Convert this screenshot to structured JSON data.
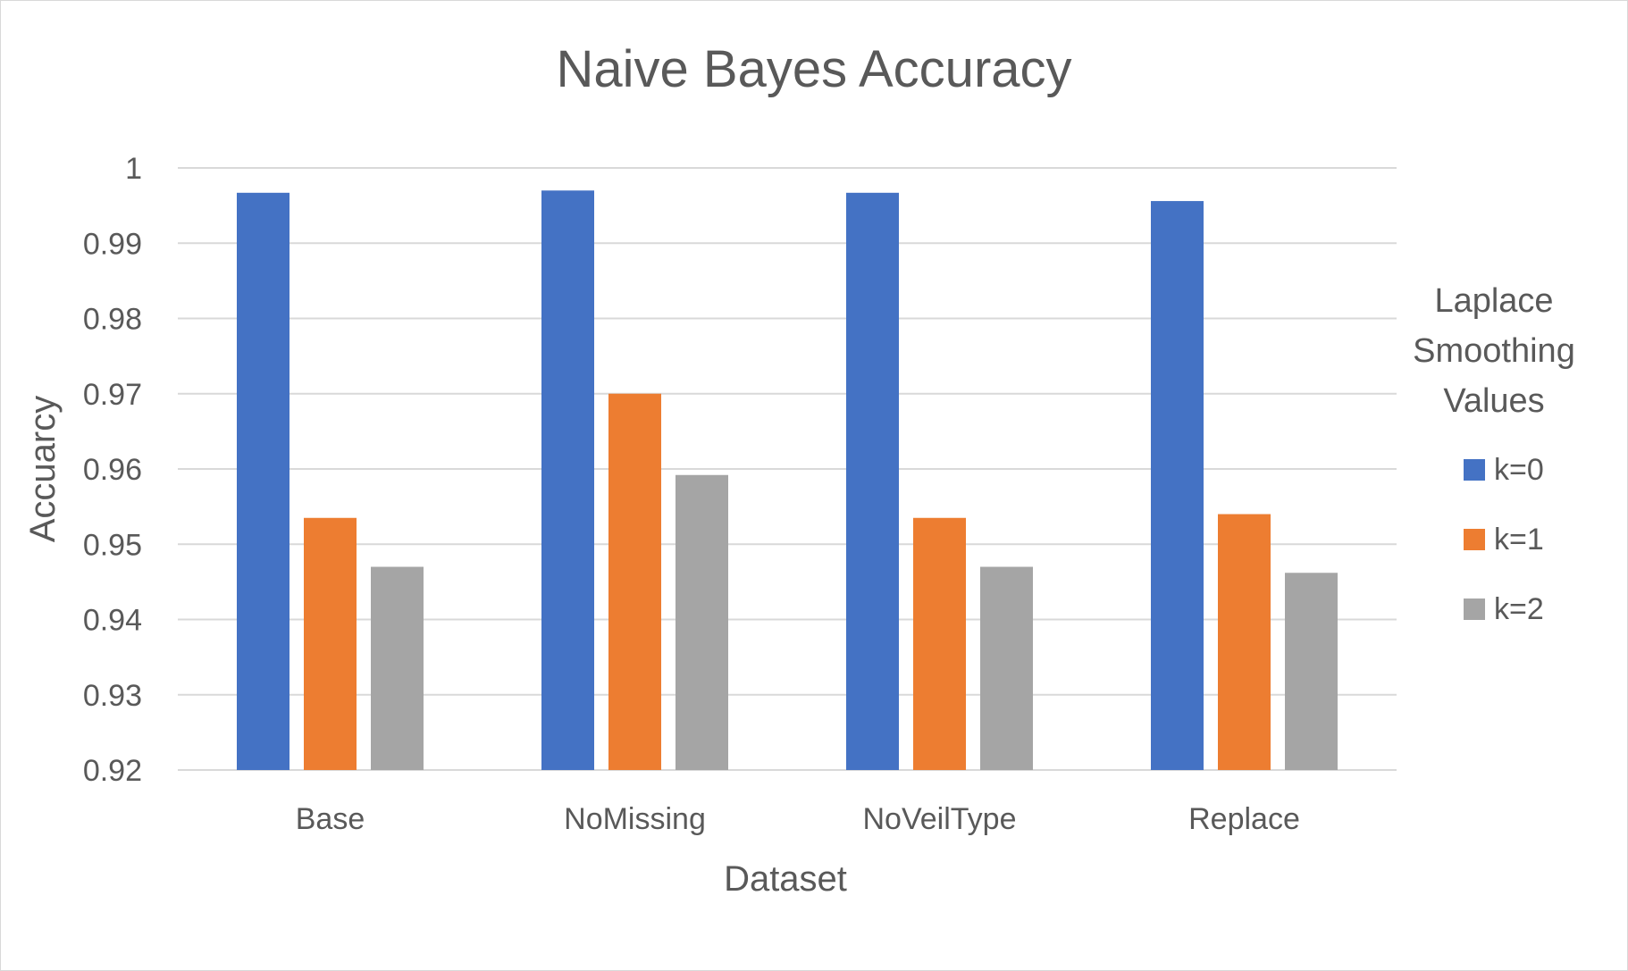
{
  "chart_data": {
    "type": "bar",
    "title": "Naive Bayes Accuracy",
    "xlabel": "Dataset",
    "ylabel": "Accuarcy",
    "categories": [
      "Base",
      "NoMissing",
      "NoVeilType",
      "Replace"
    ],
    "series": [
      {
        "name": "k=0",
        "color": "#4472C4",
        "values": [
          0.9967,
          0.997,
          0.9967,
          0.9956
        ]
      },
      {
        "name": "k=1",
        "color": "#ED7D31",
        "values": [
          0.9535,
          0.97,
          0.9535,
          0.954
        ]
      },
      {
        "name": "k=2",
        "color": "#A5A5A5",
        "values": [
          0.947,
          0.9592,
          0.947,
          0.9462
        ]
      }
    ],
    "ylim": [
      0.92,
      1
    ],
    "yticks": [
      "0.92",
      "0.93",
      "0.94",
      "0.95",
      "0.96",
      "0.97",
      "0.98",
      "0.99",
      "1"
    ],
    "grid": true,
    "legend": {
      "title_lines": [
        "Laplace",
        "Smoothing",
        "Values"
      ],
      "position": "right"
    }
  }
}
